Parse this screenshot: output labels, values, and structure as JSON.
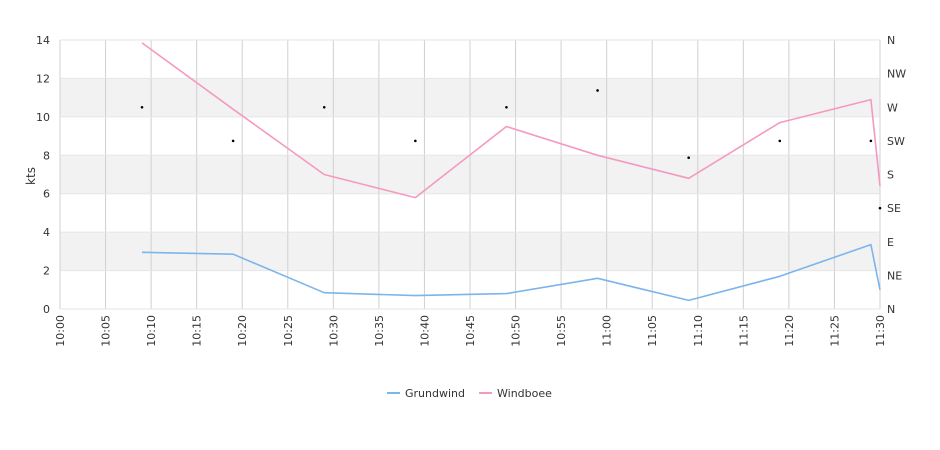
{
  "chart_data": {
    "type": "line",
    "title": "",
    "xlabel": "",
    "ylabel": "kts",
    "ylim": [
      0,
      14
    ],
    "yticks": [
      0,
      2,
      4,
      6,
      8,
      10,
      12,
      14
    ],
    "y2ticks": [
      "N",
      "NE",
      "E",
      "SE",
      "S",
      "SW",
      "W",
      "NW",
      "N"
    ],
    "x_range": [
      "10:00",
      "11:30"
    ],
    "xticks": [
      "10:00",
      "10:05",
      "10:10",
      "10:15",
      "10:20",
      "10:25",
      "10:30",
      "10:35",
      "10:40",
      "10:45",
      "10:50",
      "10:55",
      "11:00",
      "11:05",
      "11:10",
      "11:15",
      "11:20",
      "11:25",
      "11:30"
    ],
    "grid": true,
    "legend_position": "bottom-center",
    "series": [
      {
        "name": "Grundwind",
        "color": "#7cb5ec",
        "x": [
          "10:09",
          "10:19",
          "10:29",
          "10:39",
          "10:49",
          "10:59",
          "11:09",
          "11:19",
          "11:29",
          "11:30"
        ],
        "values": [
          2.95,
          2.85,
          0.85,
          0.7,
          0.8,
          1.6,
          0.45,
          1.7,
          3.35,
          1.0
        ]
      },
      {
        "name": "Windboee",
        "color": "#f49ac2",
        "x": [
          "10:09",
          "10:19",
          "10:29",
          "10:39",
          "10:49",
          "10:59",
          "11:09",
          "11:19",
          "11:29",
          "11:30"
        ],
        "values": [
          13.85,
          10.4,
          7.0,
          5.8,
          9.5,
          8.0,
          6.8,
          9.7,
          10.9,
          6.4
        ]
      }
    ],
    "direction_points": {
      "unit": "compass",
      "x": [
        "10:09",
        "10:19",
        "10:29",
        "10:39",
        "10:49",
        "10:59",
        "11:09",
        "11:19",
        "11:29",
        "11:30"
      ],
      "values": [
        "W",
        "SW",
        "W",
        "SW",
        "W",
        "W-NW",
        "SW-S",
        "SW",
        "SW",
        "SE"
      ]
    }
  },
  "legend": {
    "items": [
      {
        "label": "Grundwind",
        "color": "#7cb5ec"
      },
      {
        "label": "Windboee",
        "color": "#f49ac2"
      }
    ]
  }
}
